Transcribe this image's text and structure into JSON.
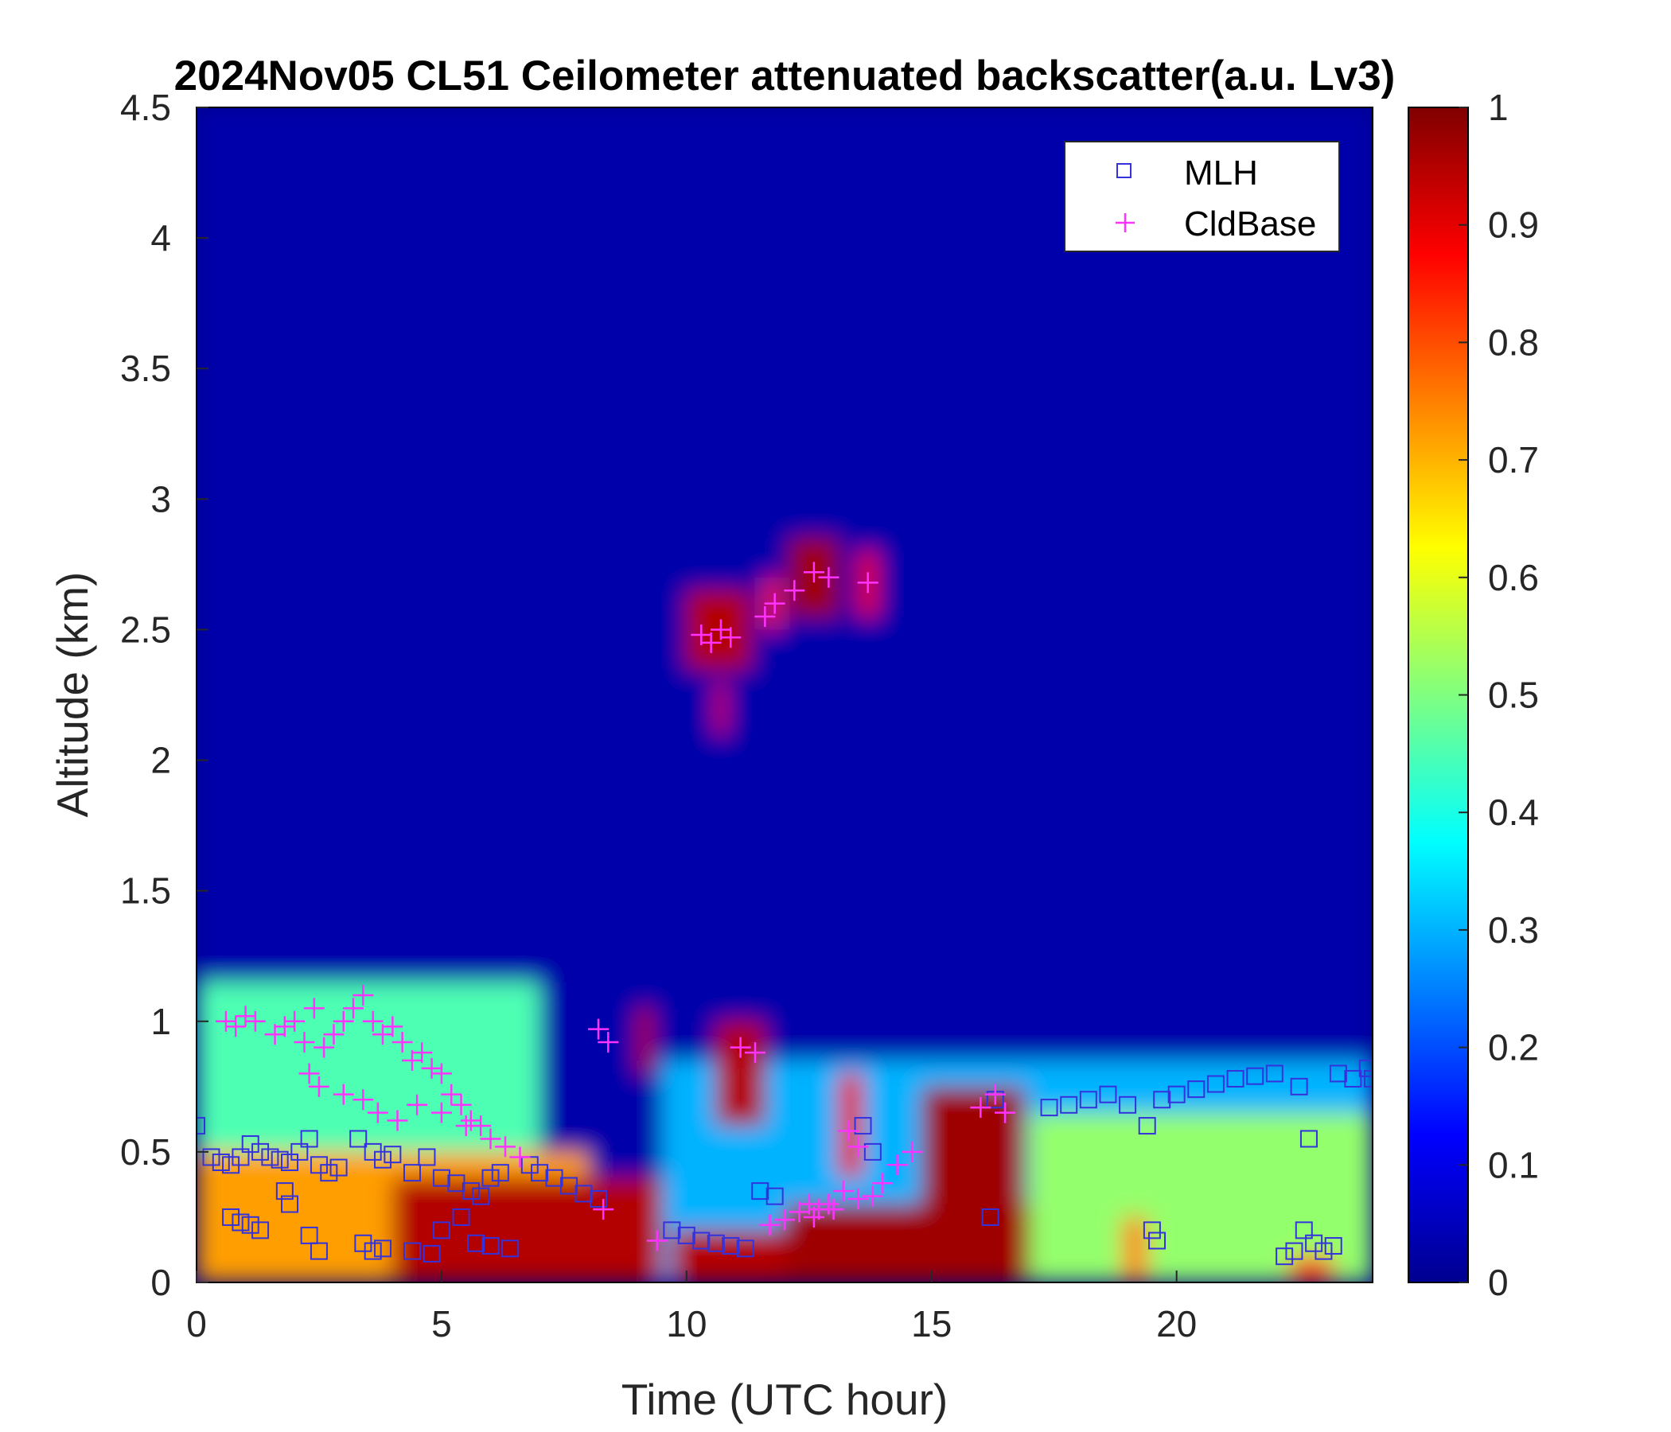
{
  "chart_data": {
    "type": "heatmap",
    "title": "2024Nov05 CL51 Ceilometer attenuated backscatter(a.u. Lv3)",
    "xlabel": "Time (UTC hour)",
    "ylabel": "Altitude (km)",
    "xlim": [
      0,
      24
    ],
    "ylim": [
      0,
      4.5
    ],
    "x_ticks": [
      0,
      5,
      10,
      15,
      20
    ],
    "x_tick_labels": [
      "0",
      "5",
      "10",
      "15",
      "20"
    ],
    "y_ticks": [
      0,
      0.5,
      1,
      1.5,
      2,
      2.5,
      3,
      3.5,
      4,
      4.5
    ],
    "y_tick_labels": [
      "0",
      "0.5",
      "1",
      "1.5",
      "2",
      "2.5",
      "3",
      "3.5",
      "4",
      "4.5"
    ],
    "colorbar": {
      "colormap": "jet",
      "range": [
        0,
        1
      ],
      "ticks": [
        0,
        0.1,
        0.2,
        0.3,
        0.4,
        0.5,
        0.6,
        0.7,
        0.8,
        0.9,
        1
      ],
      "tick_labels": [
        "0",
        "0.1",
        "0.2",
        "0.3",
        "0.4",
        "0.5",
        "0.6",
        "0.7",
        "0.8",
        "0.9",
        "1"
      ],
      "colors": [
        "#00008f",
        "#0000ff",
        "#0080ff",
        "#00ffff",
        "#80ff80",
        "#ffff00",
        "#ff8000",
        "#ff0000",
        "#800000"
      ]
    },
    "legend": {
      "location": "top-right",
      "entries": [
        {
          "label": "MLH",
          "marker": "square",
          "color": "#3333dd"
        },
        {
          "label": "CldBase",
          "marker": "plus",
          "color": "#ff33ff"
        }
      ]
    },
    "heatmap_regions": [
      {
        "x": [
          0,
          24
        ],
        "y": [
          0,
          4.5
        ],
        "value": 0.03
      },
      {
        "x": [
          0,
          7
        ],
        "y": [
          0,
          1.15
        ],
        "value": 0.45
      },
      {
        "x": [
          0,
          8
        ],
        "y": [
          0,
          0.5
        ],
        "value": 0.72
      },
      {
        "x": [
          4,
          9.5
        ],
        "y": [
          0,
          0.4
        ],
        "value": 0.95
      },
      {
        "x": [
          9.5,
          17
        ],
        "y": [
          0,
          0.85
        ],
        "value": 0.3
      },
      {
        "x": [
          9.7,
          12
        ],
        "y": [
          0,
          0.2
        ],
        "value": 0.95
      },
      {
        "x": [
          12,
          17
        ],
        "y": [
          0,
          0.3
        ],
        "value": 0.97
      },
      {
        "x": [
          14.8,
          16.9
        ],
        "y": [
          0,
          0.75
        ],
        "value": 0.97
      },
      {
        "x": [
          10.6,
          11.6
        ],
        "y": [
          0.6,
          1.0
        ],
        "value": 0.95
      },
      {
        "x": [
          13.1,
          13.6
        ],
        "y": [
          0.4,
          0.8
        ],
        "value": 0.9
      },
      {
        "x": [
          17,
          24
        ],
        "y": [
          0,
          0.65
        ],
        "value": 0.52
      },
      {
        "x": [
          17,
          24
        ],
        "y": [
          0.65,
          0.85
        ],
        "value": 0.3
      },
      {
        "x": [
          10.0,
          11.3
        ],
        "y": [
          2.35,
          2.65
        ],
        "value": 0.95
      },
      {
        "x": [
          10.6,
          10.8
        ],
        "y": [
          2.1,
          2.3
        ],
        "value": 0.9
      },
      {
        "x": [
          11.6,
          11.9
        ],
        "y": [
          2.5,
          2.7
        ],
        "value": 0.85
      },
      {
        "x": [
          12.1,
          13.1
        ],
        "y": [
          2.55,
          2.85
        ],
        "value": 0.97
      },
      {
        "x": [
          13.5,
          13.9
        ],
        "y": [
          2.55,
          2.8
        ],
        "value": 0.9
      },
      {
        "x": [
          9.0,
          9.3
        ],
        "y": [
          0.8,
          1.05
        ],
        "value": 0.95
      },
      {
        "x": [
          18.9,
          19.4
        ],
        "y": [
          0,
          0.25
        ],
        "value": 0.75
      },
      {
        "x": [
          22.3,
          23.2
        ],
        "y": [
          0,
          0.1
        ],
        "value": 0.8
      }
    ],
    "series": [
      {
        "name": "MLH",
        "marker": "square",
        "x": [
          0.0,
          0.3,
          0.5,
          0.7,
          0.9,
          1.1,
          1.3,
          1.5,
          1.7,
          1.9,
          2.1,
          2.3,
          2.5,
          2.7,
          2.9,
          3.3,
          3.6,
          3.8,
          4.0,
          4.4,
          4.7,
          5.0,
          5.3,
          5.6,
          5.8,
          6.0,
          6.2,
          0.7,
          0.9,
          1.1,
          1.3,
          1.8,
          1.9,
          2.3,
          2.5,
          3.4,
          3.6,
          3.8,
          4.4,
          4.8,
          5.0,
          5.4,
          5.7,
          6.0,
          6.4,
          6.8,
          7.0,
          7.3,
          7.6,
          7.9,
          8.2,
          9.7,
          10.0,
          10.3,
          10.6,
          10.9,
          11.2,
          11.5,
          11.8,
          13.6,
          13.8,
          16.2,
          16.3,
          17.4,
          17.8,
          18.2,
          18.6,
          19.0,
          19.4,
          19.7,
          20.0,
          20.4,
          20.8,
          21.2,
          21.6,
          22.0,
          22.5,
          22.7,
          23.3,
          23.6,
          23.9,
          19.5,
          19.6,
          22.2,
          22.4,
          22.6,
          22.8,
          23.0,
          23.2,
          24.0
        ],
        "y": [
          0.6,
          0.48,
          0.46,
          0.45,
          0.48,
          0.53,
          0.5,
          0.48,
          0.47,
          0.46,
          0.5,
          0.55,
          0.45,
          0.42,
          0.44,
          0.55,
          0.5,
          0.47,
          0.49,
          0.42,
          0.48,
          0.4,
          0.38,
          0.35,
          0.33,
          0.4,
          0.42,
          0.25,
          0.23,
          0.22,
          0.2,
          0.35,
          0.3,
          0.18,
          0.12,
          0.15,
          0.12,
          0.13,
          0.12,
          0.11,
          0.2,
          0.25,
          0.15,
          0.14,
          0.13,
          0.45,
          0.42,
          0.4,
          0.37,
          0.34,
          0.32,
          0.2,
          0.18,
          0.16,
          0.15,
          0.14,
          0.13,
          0.35,
          0.33,
          0.6,
          0.5,
          0.25,
          0.7,
          0.67,
          0.68,
          0.7,
          0.72,
          0.68,
          0.6,
          0.7,
          0.72,
          0.74,
          0.76,
          0.78,
          0.79,
          0.8,
          0.75,
          0.55,
          0.8,
          0.78,
          0.82,
          0.2,
          0.16,
          0.1,
          0.12,
          0.2,
          0.15,
          0.12,
          0.14,
          0.78
        ]
      },
      {
        "name": "CldBase",
        "marker": "plus",
        "x": [
          0.6,
          0.8,
          1.0,
          1.2,
          1.6,
          1.8,
          2.0,
          2.2,
          2.4,
          2.6,
          2.8,
          3.0,
          3.2,
          3.4,
          3.6,
          3.8,
          4.0,
          4.2,
          4.4,
          4.6,
          4.8,
          5.0,
          5.2,
          5.4,
          5.6,
          5.8,
          6.0,
          6.3,
          6.6,
          2.3,
          2.5,
          3.0,
          3.4,
          3.7,
          4.1,
          4.5,
          5.0,
          5.5,
          8.2,
          8.4,
          8.3,
          9.4,
          10.3,
          10.5,
          10.7,
          10.9,
          11.1,
          11.4,
          11.7,
          12.0,
          12.3,
          12.5,
          12.7,
          12.9,
          13.2,
          13.5,
          13.8,
          14.0,
          14.3,
          14.6,
          13.3,
          13.5,
          12.6,
          13.0,
          16.0,
          16.3,
          16.5,
          11.6,
          11.8,
          12.2,
          12.6,
          12.9,
          13.7
        ],
        "y": [
          1.0,
          0.98,
          1.02,
          1.0,
          0.95,
          0.98,
          1.0,
          0.92,
          1.05,
          0.9,
          0.95,
          1.0,
          1.05,
          1.1,
          1.0,
          0.95,
          0.98,
          0.92,
          0.85,
          0.88,
          0.82,
          0.8,
          0.72,
          0.68,
          0.62,
          0.6,
          0.55,
          0.52,
          0.48,
          0.8,
          0.75,
          0.72,
          0.7,
          0.65,
          0.62,
          0.68,
          0.65,
          0.6,
          0.97,
          0.92,
          0.28,
          0.16,
          2.48,
          2.45,
          2.5,
          2.47,
          0.9,
          0.88,
          0.22,
          0.24,
          0.27,
          0.3,
          0.28,
          0.3,
          0.35,
          0.32,
          0.33,
          0.38,
          0.45,
          0.5,
          0.58,
          0.52,
          0.25,
          0.28,
          0.67,
          0.72,
          0.65,
          2.55,
          2.6,
          2.65,
          2.72,
          2.7,
          2.68
        ]
      }
    ]
  }
}
